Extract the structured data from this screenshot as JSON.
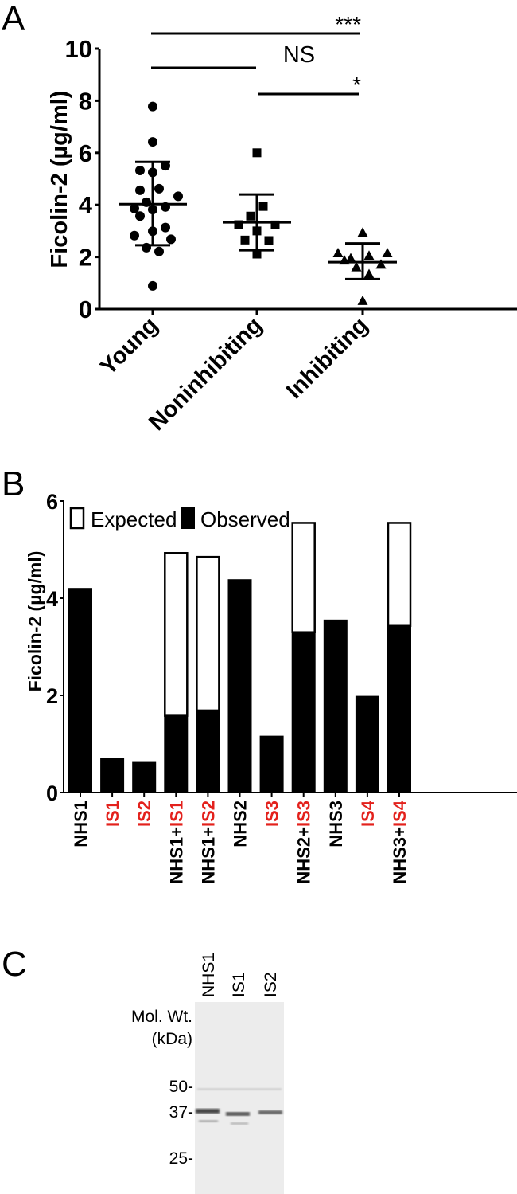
{
  "chart_data": [
    {
      "panel": "A",
      "type": "scatter",
      "ylabel": "Ficolin-2 (µg/ml)",
      "ylim": [
        0,
        10
      ],
      "yticks": [
        "0",
        "2",
        "4",
        "6",
        "8",
        "10"
      ],
      "categories": [
        "Young",
        "Noninhibiting",
        "Inhibiting"
      ],
      "series": [
        {
          "name": "Young",
          "marker": "circle",
          "values": [
            7.78,
            6.42,
            5.5,
            5.32,
            5.25,
            4.62,
            4.56,
            4.33,
            4.1,
            3.92,
            3.86,
            3.82,
            3.57,
            3.13,
            2.99,
            2.82,
            2.68,
            2.36,
            2.21,
            0.89
          ],
          "mean": 4.03,
          "sd_upper": 5.65,
          "sd_lower": 2.45
        },
        {
          "name": "Noninhibiting",
          "marker": "square",
          "values": [
            6.0,
            3.94,
            3.57,
            3.24,
            3.23,
            3.0,
            2.65,
            2.63,
            2.11
          ],
          "mean": 3.33,
          "sd_upper": 4.4,
          "sd_lower": 2.26
        },
        {
          "name": "Inhibiting",
          "marker": "triangle",
          "values": [
            2.93,
            2.14,
            2.14,
            2.04,
            1.94,
            1.86,
            1.7,
            1.6,
            1.33,
            0.31
          ],
          "mean": 1.8,
          "sd_upper": 2.52,
          "sd_lower": 1.15
        }
      ],
      "significance": [
        {
          "from": "Young",
          "to": "Inhibiting",
          "label": "***"
        },
        {
          "from": "Young",
          "to": "Noninhibiting",
          "label": "NS"
        },
        {
          "from": "Noninhibiting",
          "to": "Inhibiting",
          "label": "*"
        }
      ]
    },
    {
      "panel": "B",
      "type": "bar",
      "ylabel": "Ficolin-2 (µg/ml)",
      "ylim": [
        0,
        6
      ],
      "yticks": [
        "0",
        "2",
        "4",
        "6"
      ],
      "legend": {
        "position": "top-left",
        "entries": [
          "Expected",
          "Observed"
        ]
      },
      "categories": [
        {
          "parts": [
            {
              "t": "NHS1",
              "red": false
            }
          ]
        },
        {
          "parts": [
            {
              "t": "IS1",
              "red": true
            }
          ]
        },
        {
          "parts": [
            {
              "t": "IS2",
              "red": true
            }
          ]
        },
        {
          "parts": [
            {
              "t": "NHS1+",
              "red": false
            },
            {
              "t": "IS1",
              "red": true
            }
          ]
        },
        {
          "parts": [
            {
              "t": "NHS1+",
              "red": false
            },
            {
              "t": "IS2",
              "red": true
            }
          ]
        },
        {
          "parts": [
            {
              "t": "NHS2",
              "red": false
            }
          ]
        },
        {
          "parts": [
            {
              "t": "IS3",
              "red": true
            }
          ]
        },
        {
          "parts": [
            {
              "t": "NHS2+",
              "red": false
            },
            {
              "t": "IS3",
              "red": true
            }
          ]
        },
        {
          "parts": [
            {
              "t": "NHS3",
              "red": false
            }
          ]
        },
        {
          "parts": [
            {
              "t": "IS4",
              "red": true
            }
          ]
        },
        {
          "parts": [
            {
              "t": "NHS3+",
              "red": false
            },
            {
              "t": "IS4",
              "red": true
            }
          ]
        }
      ],
      "series": [
        {
          "name": "Observed",
          "values": [
            4.21,
            0.72,
            0.63,
            1.58,
            1.69,
            4.39,
            1.17,
            3.3,
            3.56,
            1.99,
            3.43
          ]
        },
        {
          "name": "Expected",
          "values": [
            null,
            null,
            null,
            4.93,
            4.85,
            null,
            null,
            5.55,
            null,
            null,
            5.55
          ]
        }
      ],
      "colors": {
        "red_label": "#e3211c",
        "bar": "#000000"
      }
    }
  ],
  "panel_labels": [
    "A",
    "B",
    "C"
  ],
  "blot": {
    "lanes": [
      "NHS1",
      "IS1",
      "IS2"
    ],
    "mw_title_line1": "Mol. Wt.",
    "mw_title_line2": "(kDa)",
    "markers": [
      "50-",
      "37-",
      "25-"
    ]
  }
}
